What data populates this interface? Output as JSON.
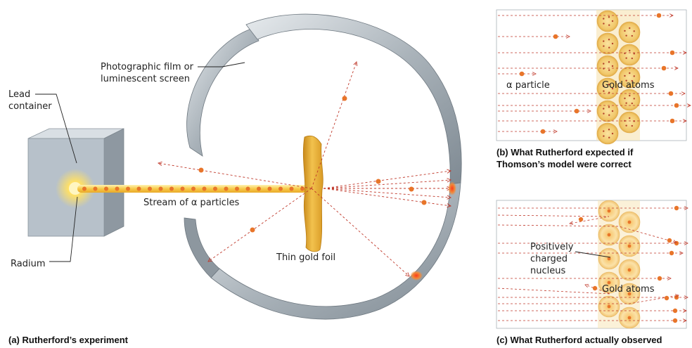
{
  "panel_a": {
    "caption": "(a) Rutherford’s experiment",
    "labels": {
      "lead_container_1": "Lead",
      "lead_container_2": "container",
      "film_1": "Photographic film or",
      "film_2": "luminescent screen",
      "stream": "Stream of α particles",
      "radium": "Radium",
      "foil": "Thin gold  foil"
    }
  },
  "panel_b": {
    "caption_1": "(b) What Rutherford expected if",
    "caption_2": "Thomson’s model were correct",
    "alpha_label": "α particle",
    "atoms_label": "Gold atoms"
  },
  "panel_c": {
    "caption": "(c) What Rutherford actually observed",
    "nucleus_1": "Positively",
    "nucleus_2": "charged",
    "nucleus_3": "nucleus",
    "atoms_label": "Gold atoms"
  },
  "colors": {
    "particle": "#e8752a",
    "trail": "#c0392b",
    "gold": "#e8b23a",
    "screen": "#a9b2b8",
    "box": "#b8c2cc"
  }
}
